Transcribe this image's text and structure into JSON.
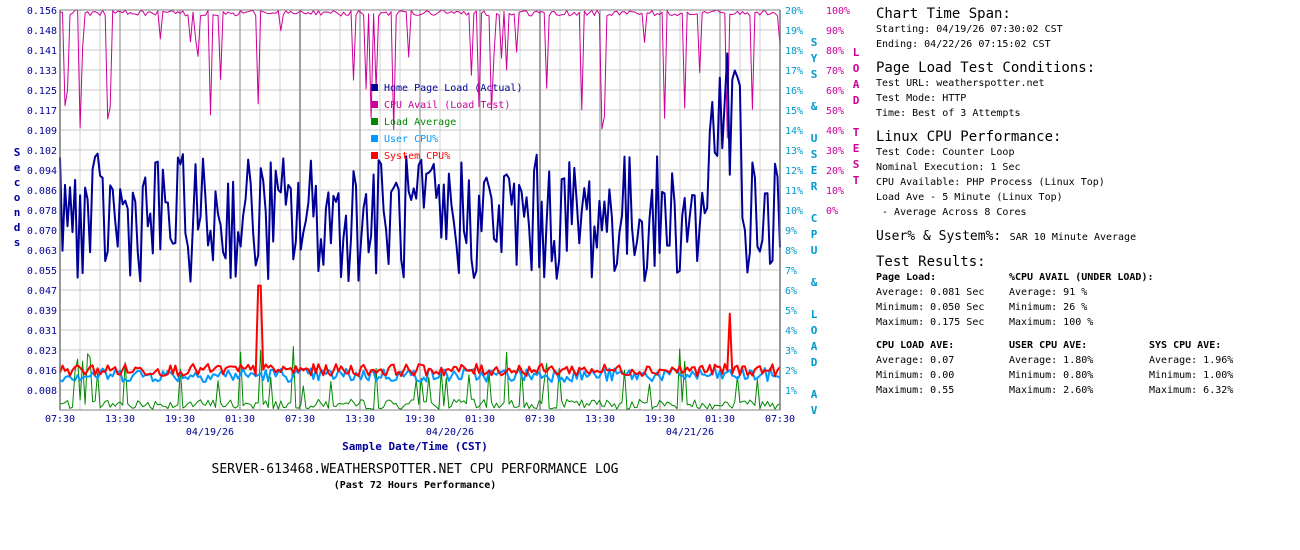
{
  "chart_data": {
    "type": "line",
    "title": "SERVER-613468.WEATHERSPOTTER.NET CPU PERFORMANCE LOG",
    "subtitle": "(Past 72 Hours Performance)",
    "xlabel": "Sample Date/Time (CST)",
    "ylabel_left": "Seconds",
    "ylabel_right1": "SYS & USER CPU & LOAD AV",
    "ylabel_right2": "LOAD TEST",
    "x_ticks": [
      "07:30",
      "13:30",
      "19:30",
      "01:30",
      "07:30",
      "13:30",
      "19:30",
      "01:30",
      "07:30",
      "13:30",
      "19:30",
      "01:30",
      "07:30"
    ],
    "x_dates": [
      {
        "label": "04/19/26",
        "tick": 2.5
      },
      {
        "label": "04/20/26",
        "tick": 6.5
      },
      {
        "label": "04/21/26",
        "tick": 10.5
      }
    ],
    "y_left_ticks": [
      "0.156",
      "0.148",
      "0.141",
      "0.133",
      "0.125",
      "0.117",
      "0.109",
      "0.102",
      "0.094",
      "0.086",
      "0.078",
      "0.070",
      "0.063",
      "0.055",
      "0.047",
      "0.039",
      "0.031",
      "0.023",
      "0.016",
      "0.008"
    ],
    "y_right1_ticks": [
      "20%",
      "19%",
      "18%",
      "17%",
      "16%",
      "15%",
      "14%",
      "13%",
      "12%",
      "11%",
      "10%",
      "9%",
      "8%",
      "7%",
      "6%",
      "5%",
      "4%",
      "3%",
      "2%",
      "1%"
    ],
    "y_right2_ticks": [
      "100%",
      "90%",
      "80%",
      "70%",
      "60%",
      "50%",
      "40%",
      "30%",
      "20%",
      "10%",
      "0%"
    ],
    "ylim_left": [
      0,
      0.156
    ],
    "ylim_right1": [
      0,
      20
    ],
    "ylim_right2": [
      0,
      100
    ],
    "grid": true,
    "legend_position": "center-left",
    "series": [
      {
        "name": "Home Page Load (Actual)",
        "color": "#000099",
        "axis": "left",
        "min": 0.05,
        "avg": 0.081,
        "max": 0.175
      },
      {
        "name": "CPU Avail (Load Test)",
        "color": "#cc0099",
        "axis": "right2",
        "min": 26,
        "avg": 91,
        "max": 100
      },
      {
        "name": "Load Average",
        "color": "#008800",
        "axis": "right1",
        "min": 0.0,
        "avg": 0.07,
        "max": 0.55
      },
      {
        "name": "User CPU%",
        "color": "#0099ff",
        "axis": "right1",
        "min": 0.8,
        "avg": 1.8,
        "max": 2.6
      },
      {
        "name": "System CPU%",
        "color": "#ff0000",
        "axis": "right1",
        "min": 1.0,
        "avg": 1.96,
        "max": 6.32
      }
    ]
  },
  "panel": {
    "span_title": "Chart Time Span:",
    "starting": "Starting: 04/19/26 07:30:02 CST",
    "ending": "Ending: 04/22/26 07:15:02 CST",
    "cond_title": "Page Load Test Conditions:",
    "test_url": "Test URL: weatherspotter.net",
    "test_mode": "Test Mode: HTTP",
    "test_time": "Time:  Best of 3 Attempts",
    "linux_title": "Linux CPU Performance:",
    "test_code": "Test Code: Counter Loop",
    "nominal": "Nominal Execution: 1 Sec",
    "cpu_avail": "CPU Available:  PHP Process (Linux Top)",
    "load_ave": "Load Ave - 5 Minute (Linux Top)",
    "avg_cores": " - Average Across 8 Cores",
    "usersys_title": "User% & System%:",
    "usersys_desc": "SAR 10 Minute Average",
    "results_title": "Test Results:",
    "page_load_head": "Page Load:",
    "page_load_avg": "Average: 0.081 Sec",
    "page_load_min": "Minimum: 0.050 Sec",
    "page_load_max": "Maximum: 0.175 Sec",
    "cpu_avail_head": "%CPU AVAIL (UNDER LOAD):",
    "cpu_avail_avg": "Average: 91 %",
    "cpu_avail_min": "Minimum: 26 %",
    "cpu_avail_max": "Maximum: 100 %",
    "load_head": "CPU LOAD AVE:",
    "load_avg": "Average: 0.07",
    "load_min": "Minimum: 0.00",
    "load_max": "Maximum: 0.55",
    "user_head": "USER CPU AVE:",
    "user_avg": "Average: 1.80%",
    "user_min": "Minimum: 0.80%",
    "user_max": "Maximum: 2.60%",
    "sys_head": "SYS CPU AVE:",
    "sys_avg": "Average: 1.96%",
    "sys_min": "Minimum: 1.00%",
    "sys_max": "Maximum: 6.32%"
  }
}
